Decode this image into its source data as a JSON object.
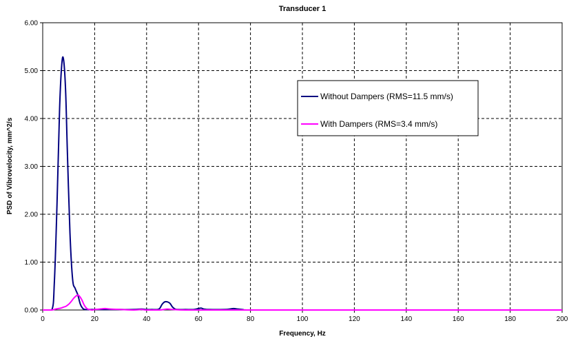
{
  "chart_data": {
    "type": "line",
    "title": "Transducer 1",
    "xlabel": "Frequency, Hz",
    "ylabel": "PSD of Vibrovelocity, mm^2/s",
    "xlim": [
      0,
      200
    ],
    "ylim": [
      0,
      6
    ],
    "x_ticks": [
      "0",
      "20",
      "40",
      "60",
      "80",
      "100",
      "120",
      "140",
      "160",
      "180",
      "200"
    ],
    "y_ticks": [
      "0.00",
      "1.00",
      "2.00",
      "3.00",
      "4.00",
      "5.00",
      "6.00"
    ],
    "grid": true,
    "legend_position": "upper-right",
    "series": [
      {
        "name": "Without Dampers (RMS=11.5 mm/s)",
        "color": "#000080",
        "x": [
          0,
          3.5,
          4.5,
          5.5,
          6.5,
          7.3,
          8.0,
          8.8,
          9.5,
          10.5,
          11.5,
          12.5,
          13.5,
          14.5,
          15.5,
          16.5,
          18,
          20,
          25,
          30,
          35,
          38,
          40,
          42,
          44,
          45,
          46,
          47,
          48,
          49,
          50,
          51,
          52,
          55,
          58,
          60,
          61,
          62,
          64,
          70,
          72,
          73.5,
          75,
          77,
          80,
          100,
          120,
          140,
          160,
          180,
          200
        ],
        "y": [
          0,
          0,
          0.6,
          2.2,
          4.2,
          5.1,
          5.24,
          4.6,
          3.3,
          1.6,
          0.65,
          0.45,
          0.32,
          0.12,
          0.03,
          0.01,
          0.01,
          0.01,
          0.01,
          0.01,
          0.01,
          0.02,
          0.01,
          0.01,
          0.01,
          0.03,
          0.12,
          0.17,
          0.17,
          0.14,
          0.06,
          0.02,
          0.01,
          0.01,
          0.01,
          0.03,
          0.04,
          0.02,
          0.01,
          0.01,
          0.02,
          0.03,
          0.02,
          0.01,
          0.0,
          0.0,
          0.0,
          0.0,
          0.0,
          0.0,
          0.0
        ]
      },
      {
        "name": "With Dampers (RMS=3.4 mm/s)",
        "color": "#ff00ff",
        "x": [
          0,
          3.5,
          5,
          7,
          8,
          9,
          10,
          11,
          12,
          13,
          13.5,
          14,
          15,
          16,
          17,
          18,
          19,
          20,
          22,
          24,
          26,
          30,
          35,
          38,
          40,
          45,
          48,
          50,
          55,
          60,
          70,
          80,
          100,
          120,
          140,
          160,
          180,
          200
        ],
        "y": [
          0,
          0,
          0.02,
          0.04,
          0.06,
          0.08,
          0.12,
          0.18,
          0.25,
          0.3,
          0.31,
          0.3,
          0.22,
          0.1,
          0.03,
          0.01,
          0.0,
          0.01,
          0.02,
          0.03,
          0.02,
          0.01,
          0.0,
          0.01,
          0.0,
          0.0,
          0.02,
          0.01,
          0.0,
          0.0,
          0.0,
          0.0,
          0.0,
          0.0,
          0.0,
          0.0,
          0.0,
          0.0
        ]
      }
    ]
  }
}
